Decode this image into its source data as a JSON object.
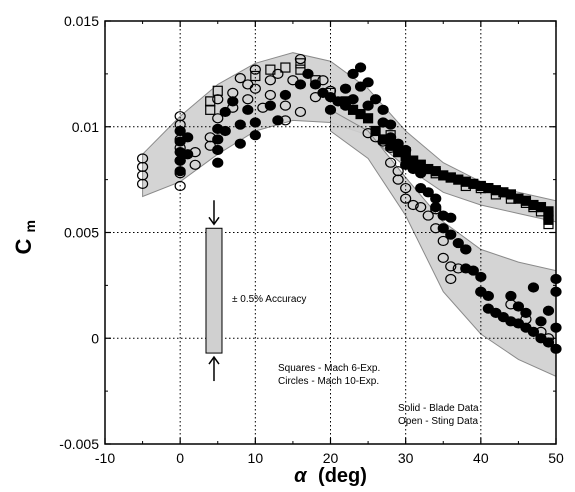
{
  "chart_data": {
    "type": "scatter",
    "title": "",
    "xlabel_symbol": "α",
    "xlabel_unit": "(deg)",
    "ylabel_main": "C",
    "ylabel_sub": "m",
    "xlim": [
      -10,
      50
    ],
    "ylim": [
      -0.005,
      0.015
    ],
    "x_ticks": [
      -10,
      0,
      10,
      20,
      30,
      40,
      50
    ],
    "x_tick_labels": [
      "-10",
      "0",
      "10",
      "20",
      "30",
      "40",
      "50"
    ],
    "y_ticks": [
      -0.005,
      0,
      0.005,
      0.01,
      0.015
    ],
    "y_tick_labels": [
      "-0.005",
      "0",
      "0.005",
      "0.01",
      "0.015"
    ],
    "grid": true,
    "grid_style": "dotted",
    "annotations": {
      "accuracy": "± 0.5% Accuracy",
      "legend_line1": "Squares - Mach 6-Exp.",
      "legend_line2": "Circles - Mach 10-Exp.",
      "legend_line3": "Solid - Blade Data",
      "legend_line4": "Open - Sting Data"
    },
    "accuracy_bar": {
      "x": 4.5,
      "y_low": -0.0007,
      "y_high": 0.0052
    },
    "colors": {
      "band": "#cfcfcf",
      "band_stroke": "#8a8a8a",
      "marker": "#000000",
      "accuracy_bar": "#d0d0d0"
    },
    "bands": [
      {
        "name": "upper band (Mach 6)",
        "upper": [
          [
            -5,
            0.0087
          ],
          [
            0,
            0.0105
          ],
          [
            5,
            0.012
          ],
          [
            10,
            0.013
          ],
          [
            15,
            0.0135
          ],
          [
            20,
            0.0131
          ],
          [
            25,
            0.0118
          ],
          [
            30,
            0.0098
          ],
          [
            35,
            0.0083
          ],
          [
            40,
            0.0074
          ],
          [
            45,
            0.0069
          ],
          [
            50,
            0.0065
          ]
        ],
        "lower": [
          [
            50,
            0.0055
          ],
          [
            45,
            0.0059
          ],
          [
            40,
            0.0063
          ],
          [
            35,
            0.0069
          ],
          [
            30,
            0.0081
          ],
          [
            25,
            0.0096
          ],
          [
            20,
            0.0102
          ],
          [
            15,
            0.0103
          ],
          [
            10,
            0.0098
          ],
          [
            5,
            0.0087
          ],
          [
            0,
            0.0074
          ],
          [
            -5,
            0.0067
          ]
        ]
      },
      {
        "name": "lower band (Mach 10)",
        "upper": [
          [
            20,
            0.0108
          ],
          [
            25,
            0.0098
          ],
          [
            30,
            0.0076
          ],
          [
            35,
            0.0055
          ],
          [
            40,
            0.0042
          ],
          [
            45,
            0.0036
          ],
          [
            50,
            0.0032
          ]
        ],
        "lower": [
          [
            50,
            -0.0018
          ],
          [
            45,
            -0.001
          ],
          [
            40,
            0.0002
          ],
          [
            35,
            0.0022
          ],
          [
            30,
            0.0058
          ],
          [
            25,
            0.0085
          ],
          [
            20,
            0.0098
          ]
        ]
      }
    ],
    "series": [
      {
        "name": "Squares - Mach 6-Exp. Solid - Blade Data",
        "marker": "square",
        "filled": true,
        "points": [
          [
            22,
            0.0112
          ],
          [
            23,
            0.0108
          ],
          [
            24,
            0.0106
          ],
          [
            25,
            0.0104
          ],
          [
            26,
            0.0098
          ],
          [
            27,
            0.0094
          ],
          [
            28,
            0.0091
          ],
          [
            29,
            0.0088
          ],
          [
            30,
            0.0086
          ],
          [
            31,
            0.0084
          ],
          [
            32,
            0.0082
          ],
          [
            33,
            0.008
          ],
          [
            34,
            0.0079
          ],
          [
            35,
            0.0077
          ],
          [
            36,
            0.0076
          ],
          [
            37,
            0.0075
          ],
          [
            38,
            0.0074
          ],
          [
            39,
            0.0073
          ],
          [
            40,
            0.0072
          ],
          [
            41,
            0.0071
          ],
          [
            42,
            0.007
          ],
          [
            43,
            0.0069
          ],
          [
            44,
            0.0068
          ],
          [
            45,
            0.0066
          ],
          [
            46,
            0.0065
          ],
          [
            47,
            0.0063
          ],
          [
            48,
            0.0062
          ],
          [
            49,
            0.006
          ],
          [
            49,
            0.0056
          ]
        ]
      },
      {
        "name": "Squares - Mach 6-Exp. Open - Sting Data",
        "marker": "square",
        "filled": false,
        "points": [
          [
            4,
            0.0112
          ],
          [
            4,
            0.0108
          ],
          [
            5,
            0.0117
          ],
          [
            10,
            0.0124
          ],
          [
            12,
            0.0127
          ],
          [
            14,
            0.0128
          ],
          [
            16,
            0.013
          ],
          [
            16,
            0.0127
          ],
          [
            18,
            0.0122
          ],
          [
            20,
            0.0116
          ],
          [
            22,
            0.0111
          ],
          [
            28,
            0.0096
          ],
          [
            30,
            0.0088
          ],
          [
            32,
            0.0082
          ],
          [
            34,
            0.0078
          ],
          [
            36,
            0.0076
          ],
          [
            38,
            0.0072
          ],
          [
            40,
            0.0071
          ],
          [
            42,
            0.0068
          ],
          [
            44,
            0.0066
          ],
          [
            46,
            0.0064
          ],
          [
            47,
            0.0062
          ],
          [
            48,
            0.006
          ],
          [
            49,
            0.0058
          ],
          [
            49,
            0.0054
          ]
        ]
      },
      {
        "name": "Circles - Mach 10-Exp. Solid - Blade Data",
        "marker": "circle",
        "filled": true,
        "points": [
          [
            0,
            0.0098
          ],
          [
            0,
            0.0093
          ],
          [
            0,
            0.0088
          ],
          [
            0,
            0.0084
          ],
          [
            0,
            0.0079
          ],
          [
            1,
            0.0095
          ],
          [
            1,
            0.0087
          ],
          [
            5,
            0.0083
          ],
          [
            5,
            0.0089
          ],
          [
            5,
            0.0094
          ],
          [
            5,
            0.0099
          ],
          [
            6,
            0.0098
          ],
          [
            6,
            0.0107
          ],
          [
            7,
            0.0112
          ],
          [
            8,
            0.0092
          ],
          [
            8,
            0.0101
          ],
          [
            9,
            0.0108
          ],
          [
            10,
            0.0102
          ],
          [
            10,
            0.0096
          ],
          [
            12,
            0.011
          ],
          [
            13,
            0.0103
          ],
          [
            14,
            0.0115
          ],
          [
            16,
            0.012
          ],
          [
            17,
            0.0125
          ],
          [
            18,
            0.012
          ],
          [
            19,
            0.0116
          ],
          [
            20,
            0.0114
          ],
          [
            20,
            0.0108
          ],
          [
            21,
            0.0112
          ],
          [
            22,
            0.0118
          ],
          [
            22,
            0.011
          ],
          [
            23,
            0.0125
          ],
          [
            23,
            0.0113
          ],
          [
            24,
            0.0128
          ],
          [
            24,
            0.0119
          ],
          [
            25,
            0.0121
          ],
          [
            25,
            0.011
          ],
          [
            26,
            0.0113
          ],
          [
            27,
            0.0108
          ],
          [
            27,
            0.0102
          ],
          [
            28,
            0.0101
          ],
          [
            28,
            0.0095
          ],
          [
            29,
            0.0092
          ],
          [
            30,
            0.0089
          ],
          [
            30,
            0.0082
          ],
          [
            31,
            0.008
          ],
          [
            32,
            0.0078
          ],
          [
            32,
            0.0071
          ],
          [
            33,
            0.0069
          ],
          [
            34,
            0.0066
          ],
          [
            34,
            0.0062
          ],
          [
            35,
            0.0058
          ],
          [
            35,
            0.0052
          ],
          [
            36,
            0.0057
          ],
          [
            36,
            0.0049
          ],
          [
            37,
            0.0045
          ],
          [
            38,
            0.0042
          ],
          [
            38,
            0.0033
          ],
          [
            39,
            0.0032
          ],
          [
            40,
            0.0022
          ],
          [
            40,
            0.0029
          ],
          [
            41,
            0.002
          ],
          [
            41,
            0.0014
          ],
          [
            42,
            0.0012
          ],
          [
            43,
            0.001
          ],
          [
            44,
            0.002
          ],
          [
            44,
            0.0008
          ],
          [
            45,
            0.0015
          ],
          [
            45,
            0.0007
          ],
          [
            46,
            0.0012
          ],
          [
            46,
            0.0005
          ],
          [
            47,
            0.0003
          ],
          [
            47,
            0.0024
          ],
          [
            48,
            0.0008
          ],
          [
            48,
            0.0
          ],
          [
            49,
            0.0013
          ],
          [
            49,
            -0.0002
          ],
          [
            50,
            0.0005
          ],
          [
            50,
            -0.0005
          ],
          [
            50,
            0.0022
          ],
          [
            50,
            0.0028
          ]
        ]
      },
      {
        "name": "Circles - Mach 10-Exp. Open - Sting Data",
        "marker": "circle",
        "filled": false,
        "points": [
          [
            -5,
            0.0085
          ],
          [
            -5,
            0.0081
          ],
          [
            -5,
            0.0077
          ],
          [
            -5,
            0.0073
          ],
          [
            0,
            0.0105
          ],
          [
            0,
            0.0101
          ],
          [
            0,
            0.0094
          ],
          [
            0,
            0.009
          ],
          [
            0,
            0.0084
          ],
          [
            0,
            0.0078
          ],
          [
            0,
            0.0072
          ],
          [
            2,
            0.0088
          ],
          [
            2,
            0.0082
          ],
          [
            4,
            0.0095
          ],
          [
            4,
            0.0091
          ],
          [
            5,
            0.0104
          ],
          [
            5,
            0.0113
          ],
          [
            7,
            0.0109
          ],
          [
            7,
            0.0116
          ],
          [
            8,
            0.0123
          ],
          [
            9,
            0.012
          ],
          [
            9,
            0.0113
          ],
          [
            10,
            0.0127
          ],
          [
            10,
            0.0118
          ],
          [
            11,
            0.0109
          ],
          [
            12,
            0.0122
          ],
          [
            12,
            0.0115
          ],
          [
            13,
            0.0125
          ],
          [
            14,
            0.011
          ],
          [
            14,
            0.0103
          ],
          [
            15,
            0.0122
          ],
          [
            16,
            0.0132
          ],
          [
            16,
            0.0107
          ],
          [
            18,
            0.0114
          ],
          [
            19,
            0.0122
          ],
          [
            20,
            0.0117
          ],
          [
            25,
            0.0097
          ],
          [
            26,
            0.0095
          ],
          [
            27,
            0.0093
          ],
          [
            28,
            0.009
          ],
          [
            28,
            0.0083
          ],
          [
            29,
            0.0079
          ],
          [
            29,
            0.0075
          ],
          [
            30,
            0.0071
          ],
          [
            30,
            0.0066
          ],
          [
            31,
            0.0063
          ],
          [
            32,
            0.0062
          ],
          [
            33,
            0.0058
          ],
          [
            34,
            0.0061
          ],
          [
            34,
            0.0052
          ],
          [
            35,
            0.0046
          ],
          [
            35,
            0.0038
          ],
          [
            36,
            0.0034
          ],
          [
            36,
            0.0028
          ],
          [
            37,
            0.0033
          ],
          [
            38,
            0.0042
          ],
          [
            40,
            0.0022
          ],
          [
            44,
            0.0016
          ],
          [
            46,
            0.0009
          ],
          [
            48,
            0.0003
          ],
          [
            49,
            0.0
          ]
        ]
      }
    ]
  }
}
